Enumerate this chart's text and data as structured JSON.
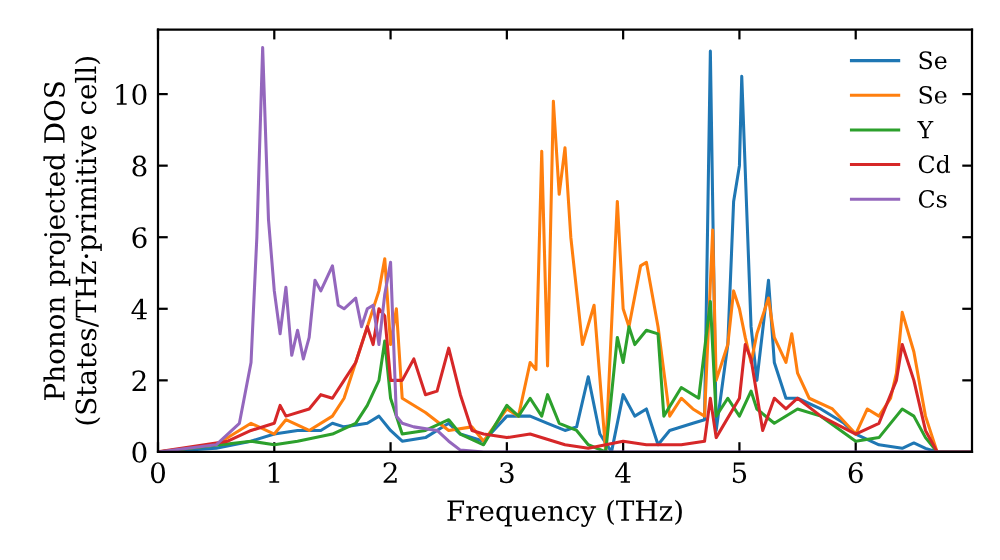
{
  "chart_data": {
    "type": "line",
    "xlabel": "Frequency (THz)",
    "ylabel": "Phonon projected DOS\n(States/THz·primitive cell)",
    "xlim": [
      0,
      7
    ],
    "ylim": [
      0,
      11.8
    ],
    "xticks": [
      0,
      1,
      2,
      3,
      4,
      5,
      6
    ],
    "yticks": [
      0,
      2,
      4,
      6,
      8,
      10
    ],
    "grid": false,
    "legend": "top right",
    "line_style": "solid",
    "marker": "none",
    "series": [
      {
        "name": "Se",
        "color": "#1f77b4",
        "x": [
          0,
          0.5,
          0.8,
          1,
          1.2,
          1.4,
          1.5,
          1.6,
          1.8,
          1.9,
          2.0,
          2.1,
          2.3,
          2.5,
          2.6,
          2.8,
          3.0,
          3.2,
          3.35,
          3.5,
          3.6,
          3.7,
          3.8,
          3.9,
          4.0,
          4.1,
          4.2,
          4.3,
          4.4,
          4.6,
          4.7,
          4.75,
          4.8,
          4.9,
          4.95,
          5.0,
          5.02,
          5.1,
          5.15,
          5.25,
          5.3,
          5.4,
          5.5,
          5.7,
          5.9,
          6.0,
          6.2,
          6.4,
          6.5,
          6.6,
          6.7,
          7
        ],
        "values": [
          0,
          0.1,
          0.3,
          0.5,
          0.6,
          0.6,
          0.8,
          0.7,
          0.8,
          1.0,
          0.6,
          0.3,
          0.4,
          0.8,
          0.5,
          0.3,
          1.0,
          1.0,
          0.8,
          0.6,
          0.7,
          2.1,
          0.5,
          0.0,
          1.6,
          1.0,
          1.2,
          0.2,
          0.6,
          0.8,
          0.9,
          11.2,
          0.6,
          3.0,
          7.0,
          8.0,
          10.5,
          3.5,
          2.0,
          4.8,
          2.5,
          1.5,
          1.5,
          1.2,
          0.8,
          0.5,
          0.2,
          0.1,
          0.25,
          0.1,
          0.0,
          0
        ]
      },
      {
        "name": "Se",
        "color": "#ff7f0e",
        "x": [
          0,
          0.5,
          0.8,
          1.0,
          1.1,
          1.3,
          1.5,
          1.6,
          1.7,
          1.8,
          1.9,
          1.95,
          2.0,
          2.05,
          2.1,
          2.3,
          2.5,
          2.7,
          2.8,
          3.0,
          3.1,
          3.2,
          3.25,
          3.3,
          3.35,
          3.4,
          3.45,
          3.5,
          3.55,
          3.65,
          3.75,
          3.85,
          3.95,
          4.0,
          4.05,
          4.15,
          4.2,
          4.3,
          4.4,
          4.5,
          4.6,
          4.7,
          4.77,
          4.8,
          4.9,
          4.95,
          5.0,
          5.05,
          5.1,
          5.15,
          5.25,
          5.3,
          5.4,
          5.45,
          5.5,
          5.6,
          5.8,
          6.0,
          6.1,
          6.2,
          6.3,
          6.35,
          6.4,
          6.5,
          6.6,
          6.7,
          7
        ],
        "values": [
          0,
          0.2,
          0.8,
          0.5,
          0.9,
          0.6,
          1.0,
          1.5,
          2.5,
          3.5,
          4.5,
          5.4,
          3.0,
          4.0,
          1.5,
          1.1,
          0.6,
          0.7,
          0.3,
          1.2,
          1.0,
          2.5,
          2.3,
          8.4,
          2.4,
          9.8,
          7.2,
          8.5,
          6.0,
          3.0,
          4.1,
          0.0,
          7.0,
          4.0,
          3.5,
          5.2,
          5.3,
          3.5,
          1.0,
          1.5,
          1.2,
          1.0,
          6.2,
          2.0,
          3.0,
          4.5,
          4.0,
          3.2,
          2.5,
          3.3,
          4.3,
          3.2,
          2.5,
          3.3,
          2.2,
          1.5,
          1.2,
          0.5,
          1.2,
          1.0,
          1.5,
          2.2,
          3.9,
          2.8,
          1.0,
          0.0,
          0
        ]
      },
      {
        "name": "Y",
        "color": "#2ca02c",
        "x": [
          0,
          0.8,
          1.0,
          1.2,
          1.5,
          1.7,
          1.8,
          1.9,
          1.95,
          2.0,
          2.1,
          2.3,
          2.5,
          2.6,
          2.8,
          3.0,
          3.1,
          3.2,
          3.3,
          3.35,
          3.45,
          3.6,
          3.7,
          3.85,
          3.95,
          4.0,
          4.05,
          4.1,
          4.2,
          4.3,
          4.35,
          4.5,
          4.65,
          4.75,
          4.8,
          4.9,
          5.0,
          5.1,
          5.15,
          5.3,
          5.5,
          5.7,
          6.0,
          6.2,
          6.35,
          6.4,
          6.5,
          6.6,
          6.7,
          7
        ],
        "values": [
          0,
          0.3,
          0.2,
          0.3,
          0.5,
          0.8,
          1.3,
          2.0,
          3.1,
          1.5,
          0.5,
          0.6,
          0.9,
          0.5,
          0.2,
          1.3,
          1.0,
          1.5,
          1.0,
          1.6,
          0.8,
          0.6,
          0.2,
          0.0,
          3.2,
          2.5,
          3.5,
          3.0,
          3.4,
          3.3,
          1.0,
          1.8,
          1.5,
          4.2,
          1.0,
          1.5,
          1.0,
          1.7,
          1.2,
          0.8,
          1.2,
          1.0,
          0.3,
          0.4,
          1.0,
          1.2,
          1.0,
          0.4,
          0.0,
          0
        ]
      },
      {
        "name": "Cd",
        "color": "#d62728",
        "x": [
          0,
          0.6,
          0.8,
          1.0,
          1.05,
          1.1,
          1.3,
          1.4,
          1.5,
          1.6,
          1.7,
          1.8,
          1.85,
          1.9,
          1.95,
          2.0,
          2.1,
          2.2,
          2.3,
          2.4,
          2.5,
          2.6,
          2.7,
          2.8,
          3.0,
          3.2,
          3.5,
          3.7,
          4.0,
          4.2,
          4.5,
          4.7,
          4.75,
          4.8,
          5.0,
          5.05,
          5.1,
          5.2,
          5.3,
          5.4,
          5.5,
          5.7,
          6.0,
          6.2,
          6.35,
          6.4,
          6.5,
          6.6,
          6.7,
          7
        ],
        "values": [
          0,
          0.3,
          0.6,
          0.8,
          1.3,
          1.0,
          1.2,
          1.6,
          1.5,
          2.0,
          2.5,
          3.5,
          3.0,
          4.0,
          3.8,
          2.0,
          2.0,
          2.6,
          1.6,
          1.7,
          2.9,
          1.6,
          0.6,
          0.5,
          0.4,
          0.5,
          0.2,
          0.1,
          0.3,
          0.2,
          0.2,
          0.3,
          1.5,
          0.4,
          1.5,
          3.0,
          2.6,
          0.6,
          1.5,
          1.2,
          1.5,
          1.0,
          0.5,
          0.8,
          2.0,
          3.0,
          2.0,
          0.6,
          0.0,
          0
        ]
      },
      {
        "name": "Cs",
        "color": "#9467bd",
        "x": [
          0,
          0.5,
          0.7,
          0.8,
          0.85,
          0.9,
          0.95,
          1.0,
          1.05,
          1.1,
          1.15,
          1.2,
          1.25,
          1.3,
          1.35,
          1.4,
          1.5,
          1.55,
          1.6,
          1.7,
          1.75,
          1.8,
          1.85,
          1.9,
          1.95,
          2.0,
          2.05,
          2.1,
          2.2,
          2.4,
          2.5,
          2.6,
          2.8,
          7
        ],
        "values": [
          0,
          0.2,
          0.8,
          2.5,
          6.0,
          11.3,
          6.5,
          4.5,
          3.3,
          4.6,
          2.7,
          3.4,
          2.6,
          3.2,
          4.8,
          4.5,
          5.2,
          4.1,
          4.0,
          4.3,
          3.5,
          4.0,
          4.1,
          3.0,
          4.4,
          5.3,
          1.0,
          0.8,
          0.7,
          0.6,
          0.3,
          0.05,
          0,
          0
        ]
      }
    ]
  }
}
